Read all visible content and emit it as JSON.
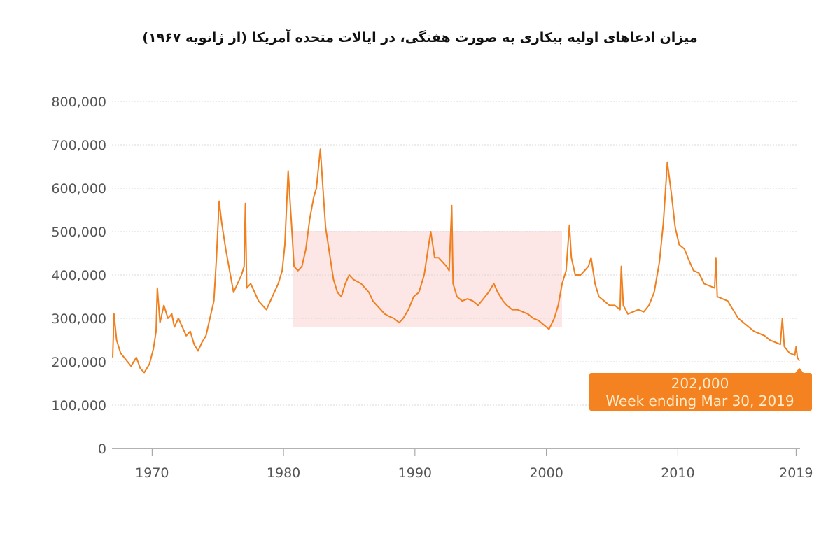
{
  "chart_data": {
    "type": "line",
    "title": "میزان ادعاهای اولیه بیکاری به صورت هفتگی، در ایالات متحده آمریکا (از ژانویه ۱۹۶۷)",
    "xlabel": "",
    "ylabel": "",
    "xlim": [
      1967,
      2019.3
    ],
    "ylim": [
      0,
      800000
    ],
    "x_ticks": [
      1970,
      1980,
      1990,
      2000,
      2010,
      2019
    ],
    "x_tick_labels": [
      "1970",
      "1980",
      "1990",
      "2000",
      "2010",
      "2019"
    ],
    "y_ticks": [
      0,
      100000,
      200000,
      300000,
      400000,
      500000,
      600000,
      700000,
      800000
    ],
    "y_tick_labels": [
      "0",
      "100,000",
      "200,000",
      "300,000",
      "400,000",
      "500,000",
      "600,000",
      "700,000",
      "800,000"
    ],
    "grid": "horizontal dotted",
    "legend": "none",
    "line_color": "#f07f1e",
    "series": [
      {
        "points": [
          [
            1967.0,
            210000
          ],
          [
            1967.1,
            310000
          ],
          [
            1967.3,
            250000
          ],
          [
            1967.6,
            220000
          ],
          [
            1968.0,
            205000
          ],
          [
            1968.4,
            190000
          ],
          [
            1968.8,
            210000
          ],
          [
            1969.1,
            185000
          ],
          [
            1969.4,
            175000
          ],
          [
            1969.8,
            195000
          ],
          [
            1970.1,
            230000
          ],
          [
            1970.3,
            270000
          ],
          [
            1970.4,
            370000
          ],
          [
            1970.6,
            290000
          ],
          [
            1970.9,
            330000
          ],
          [
            1971.2,
            300000
          ],
          [
            1971.5,
            310000
          ],
          [
            1971.7,
            280000
          ],
          [
            1972.0,
            300000
          ],
          [
            1972.3,
            280000
          ],
          [
            1972.6,
            260000
          ],
          [
            1972.9,
            270000
          ],
          [
            1973.2,
            240000
          ],
          [
            1973.5,
            225000
          ],
          [
            1973.8,
            245000
          ],
          [
            1974.1,
            260000
          ],
          [
            1974.4,
            300000
          ],
          [
            1974.7,
            340000
          ],
          [
            1974.9,
            440000
          ],
          [
            1975.1,
            570000
          ],
          [
            1975.3,
            520000
          ],
          [
            1975.6,
            460000
          ],
          [
            1975.9,
            410000
          ],
          [
            1976.2,
            360000
          ],
          [
            1976.5,
            380000
          ],
          [
            1976.8,
            400000
          ],
          [
            1977.0,
            420000
          ],
          [
            1977.1,
            565000
          ],
          [
            1977.2,
            370000
          ],
          [
            1977.5,
            380000
          ],
          [
            1977.8,
            360000
          ],
          [
            1978.1,
            340000
          ],
          [
            1978.4,
            330000
          ],
          [
            1978.7,
            320000
          ],
          [
            1979.0,
            340000
          ],
          [
            1979.3,
            360000
          ],
          [
            1979.6,
            380000
          ],
          [
            1979.9,
            410000
          ],
          [
            1980.1,
            470000
          ],
          [
            1980.35,
            640000
          ],
          [
            1980.6,
            520000
          ],
          [
            1980.8,
            420000
          ],
          [
            1981.1,
            410000
          ],
          [
            1981.4,
            420000
          ],
          [
            1981.7,
            460000
          ],
          [
            1982.0,
            530000
          ],
          [
            1982.3,
            580000
          ],
          [
            1982.5,
            600000
          ],
          [
            1982.8,
            690000
          ],
          [
            1983.0,
            600000
          ],
          [
            1983.2,
            510000
          ],
          [
            1983.5,
            450000
          ],
          [
            1983.8,
            390000
          ],
          [
            1984.1,
            360000
          ],
          [
            1984.4,
            350000
          ],
          [
            1984.7,
            380000
          ],
          [
            1985.0,
            400000
          ],
          [
            1985.3,
            390000
          ],
          [
            1985.6,
            385000
          ],
          [
            1985.9,
            380000
          ],
          [
            1986.2,
            370000
          ],
          [
            1986.5,
            360000
          ],
          [
            1986.8,
            340000
          ],
          [
            1987.1,
            330000
          ],
          [
            1987.4,
            320000
          ],
          [
            1987.7,
            310000
          ],
          [
            1988.0,
            305000
          ],
          [
            1988.4,
            300000
          ],
          [
            1988.8,
            290000
          ],
          [
            1989.1,
            300000
          ],
          [
            1989.5,
            320000
          ],
          [
            1989.9,
            350000
          ],
          [
            1990.3,
            360000
          ],
          [
            1990.7,
            400000
          ],
          [
            1991.0,
            460000
          ],
          [
            1991.2,
            500000
          ],
          [
            1991.5,
            440000
          ],
          [
            1991.8,
            440000
          ],
          [
            1992.1,
            430000
          ],
          [
            1992.4,
            420000
          ],
          [
            1992.6,
            410000
          ],
          [
            1992.8,
            560000
          ],
          [
            1992.9,
            380000
          ],
          [
            1993.2,
            350000
          ],
          [
            1993.6,
            340000
          ],
          [
            1994.0,
            345000
          ],
          [
            1994.4,
            340000
          ],
          [
            1994.8,
            330000
          ],
          [
            1995.2,
            345000
          ],
          [
            1995.6,
            360000
          ],
          [
            1996.0,
            380000
          ],
          [
            1996.3,
            360000
          ],
          [
            1996.7,
            340000
          ],
          [
            1997.0,
            330000
          ],
          [
            1997.4,
            320000
          ],
          [
            1997.8,
            320000
          ],
          [
            1998.2,
            315000
          ],
          [
            1998.6,
            310000
          ],
          [
            1999.0,
            300000
          ],
          [
            1999.4,
            295000
          ],
          [
            1999.8,
            285000
          ],
          [
            2000.2,
            275000
          ],
          [
            2000.6,
            300000
          ],
          [
            2000.9,
            330000
          ],
          [
            2001.2,
            380000
          ],
          [
            2001.5,
            410000
          ],
          [
            2001.75,
            515000
          ],
          [
            2001.9,
            440000
          ],
          [
            2002.2,
            400000
          ],
          [
            2002.6,
            400000
          ],
          [
            2002.9,
            410000
          ],
          [
            2003.2,
            420000
          ],
          [
            2003.4,
            440000
          ],
          [
            2003.7,
            380000
          ],
          [
            2004.0,
            350000
          ],
          [
            2004.4,
            340000
          ],
          [
            2004.8,
            330000
          ],
          [
            2005.2,
            330000
          ],
          [
            2005.6,
            320000
          ],
          [
            2005.7,
            420000
          ],
          [
            2005.85,
            330000
          ],
          [
            2006.2,
            310000
          ],
          [
            2006.6,
            315000
          ],
          [
            2007.0,
            320000
          ],
          [
            2007.4,
            315000
          ],
          [
            2007.8,
            330000
          ],
          [
            2008.2,
            360000
          ],
          [
            2008.6,
            430000
          ],
          [
            2008.9,
            520000
          ],
          [
            2009.2,
            660000
          ],
          [
            2009.5,
            590000
          ],
          [
            2009.8,
            510000
          ],
          [
            2010.1,
            470000
          ],
          [
            2010.5,
            460000
          ],
          [
            2010.9,
            430000
          ],
          [
            2011.2,
            410000
          ],
          [
            2011.6,
            405000
          ],
          [
            2012.0,
            380000
          ],
          [
            2012.4,
            375000
          ],
          [
            2012.8,
            370000
          ],
          [
            2012.9,
            440000
          ],
          [
            2013.0,
            350000
          ],
          [
            2013.4,
            345000
          ],
          [
            2013.8,
            340000
          ],
          [
            2014.2,
            320000
          ],
          [
            2014.6,
            300000
          ],
          [
            2015.0,
            290000
          ],
          [
            2015.4,
            280000
          ],
          [
            2015.8,
            270000
          ],
          [
            2016.2,
            265000
          ],
          [
            2016.6,
            260000
          ],
          [
            2017.0,
            250000
          ],
          [
            2017.4,
            245000
          ],
          [
            2017.8,
            240000
          ],
          [
            2017.95,
            300000
          ],
          [
            2018.1,
            235000
          ],
          [
            2018.5,
            220000
          ],
          [
            2018.9,
            215000
          ],
          [
            2019.0,
            235000
          ],
          [
            2019.1,
            210000
          ],
          [
            2019.25,
            202000
          ]
        ]
      }
    ],
    "annotation": {
      "value": "202,000",
      "label": "Week ending Mar 30, 2019",
      "color": "#f58220",
      "text_color": "#fdebc9"
    },
    "watermark_color": "#fde6e6"
  }
}
